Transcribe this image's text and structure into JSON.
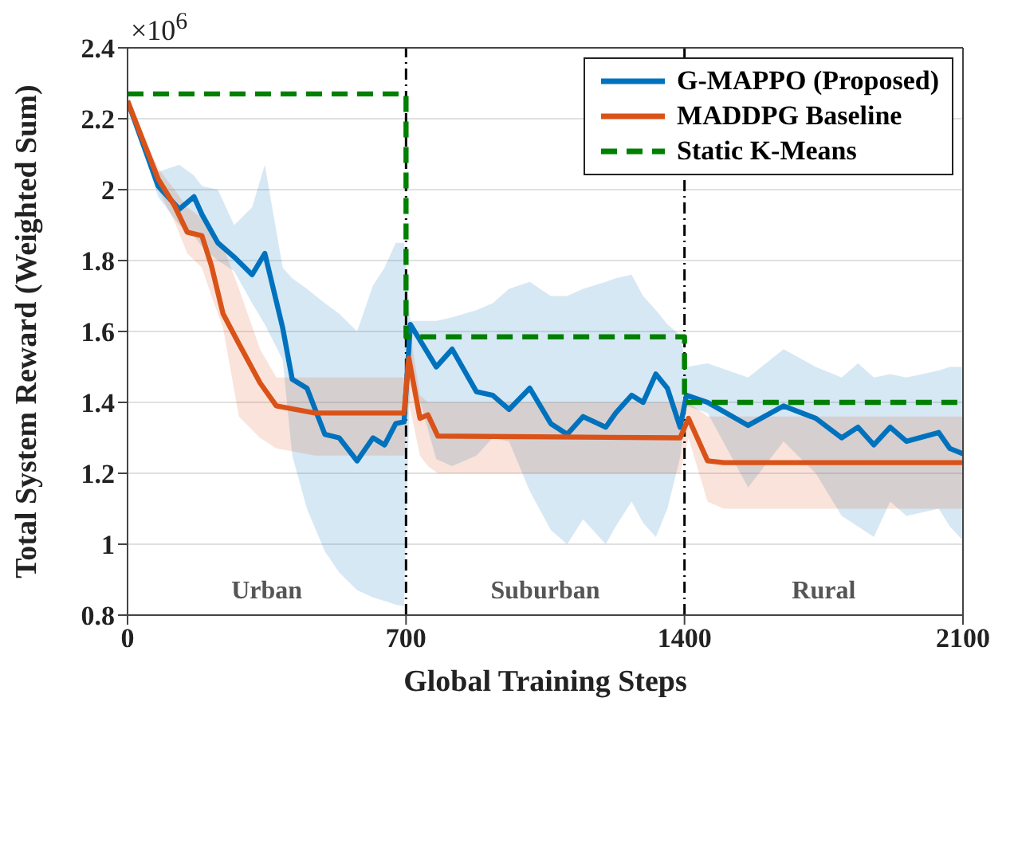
{
  "chart_data": {
    "type": "line",
    "xlabel": "Global Training Steps",
    "ylabel": "Total System Reward (Weighted Sum)",
    "xlim": [
      0,
      2100
    ],
    "xticks": [
      0,
      700,
      1400,
      2100
    ],
    "ylim": [
      0.8,
      2.4
    ],
    "yticks": [
      0.8,
      1,
      1.2,
      1.4,
      1.6,
      1.8,
      2,
      2.2,
      2.4
    ],
    "grid": "y",
    "legend": "top right",
    "marker": "none",
    "series": [
      {
        "name": "G-MAPPO (Proposed)",
        "color": "#0072bd",
        "x": [
          0,
          77,
          130,
          167,
          187,
          227,
          268,
          313,
          345,
          390,
          414,
          451,
          496,
          532,
          577,
          617,
          646,
          674,
          695,
          711,
          776,
          816,
          877,
          918,
          959,
          1011,
          1064,
          1105,
          1145,
          1202,
          1227,
          1267,
          1296,
          1328,
          1357,
          1389,
          1405,
          1458,
          1560,
          1649,
          1730,
          1795,
          1836,
          1876,
          1917,
          1958,
          2039,
          2067,
          2100
        ],
        "values": [
          2.25,
          2.01,
          1.945,
          1.98,
          1.93,
          1.85,
          1.81,
          1.76,
          1.82,
          1.61,
          1.465,
          1.44,
          1.31,
          1.3,
          1.235,
          1.3,
          1.28,
          1.34,
          1.345,
          1.62,
          1.5,
          1.55,
          1.43,
          1.42,
          1.38,
          1.44,
          1.34,
          1.31,
          1.36,
          1.33,
          1.37,
          1.42,
          1.4,
          1.48,
          1.44,
          1.33,
          1.42,
          1.4,
          1.335,
          1.39,
          1.355,
          1.3,
          1.33,
          1.28,
          1.33,
          1.29,
          1.315,
          1.27,
          1.255
        ],
        "upper": [
          2.25,
          2.05,
          2.07,
          2.04,
          2.01,
          2.0,
          1.9,
          1.95,
          2.07,
          1.78,
          1.75,
          1.72,
          1.68,
          1.65,
          1.6,
          1.73,
          1.78,
          1.85,
          1.85,
          1.63,
          1.63,
          1.64,
          1.66,
          1.68,
          1.72,
          1.74,
          1.7,
          1.7,
          1.72,
          1.74,
          1.75,
          1.76,
          1.7,
          1.66,
          1.62,
          1.59,
          1.5,
          1.51,
          1.47,
          1.55,
          1.5,
          1.47,
          1.51,
          1.47,
          1.48,
          1.47,
          1.49,
          1.5,
          1.5
        ],
        "lower": [
          2.25,
          1.98,
          1.9,
          1.87,
          1.84,
          1.8,
          1.77,
          1.68,
          1.62,
          1.52,
          1.25,
          1.1,
          0.98,
          0.92,
          0.87,
          0.85,
          0.84,
          0.83,
          0.825,
          1.5,
          1.24,
          1.22,
          1.25,
          1.3,
          1.29,
          1.15,
          1.04,
          1.0,
          1.07,
          1.0,
          1.05,
          1.12,
          1.06,
          1.02,
          1.1,
          1.245,
          1.39,
          1.37,
          1.16,
          1.29,
          1.2,
          1.08,
          1.05,
          1.02,
          1.12,
          1.08,
          1.1,
          1.05,
          1.01
        ]
      },
      {
        "name": "MADDPG Baseline",
        "color": "#d95319",
        "x": [
          0,
          77,
          118,
          150,
          187,
          211,
          240,
          280,
          333,
          374,
          471,
          695,
          707,
          735,
          755,
          780,
          1389,
          1410,
          1458,
          1499,
          2100
        ],
        "values": [
          2.25,
          2.03,
          1.955,
          1.88,
          1.87,
          1.785,
          1.65,
          1.565,
          1.455,
          1.39,
          1.37,
          1.37,
          1.525,
          1.355,
          1.365,
          1.305,
          1.3,
          1.355,
          1.235,
          1.23,
          1.23
        ],
        "upper": [
          2.25,
          2.06,
          2.0,
          1.95,
          1.92,
          1.88,
          1.84,
          1.72,
          1.55,
          1.47,
          1.47,
          1.47,
          1.62,
          1.42,
          1.4,
          1.4,
          1.4,
          1.4,
          1.36,
          1.36,
          1.36
        ],
        "lower": [
          2.25,
          2.0,
          1.91,
          1.82,
          1.78,
          1.7,
          1.61,
          1.36,
          1.3,
          1.27,
          1.25,
          1.25,
          1.4,
          1.25,
          1.22,
          1.2,
          1.2,
          1.3,
          1.12,
          1.1,
          1.1
        ]
      },
      {
        "name": "Static K-Means",
        "color": "#008000",
        "line_style": "dashed",
        "x": [
          0,
          700,
          700,
          1400,
          1400,
          2100
        ],
        "values": [
          2.27,
          2.27,
          1.585,
          1.585,
          1.4,
          1.4
        ]
      }
    ],
    "ref_lines": [
      {
        "axis": "x",
        "value": 700,
        "color": "#000000",
        "line_style": "dashed"
      },
      {
        "axis": "x",
        "value": 1400,
        "color": "#000000",
        "line_style": "dashed"
      }
    ],
    "annotations": [
      "×10$^{6}$",
      "Urban",
      "Suburban",
      "Rural"
    ]
  }
}
